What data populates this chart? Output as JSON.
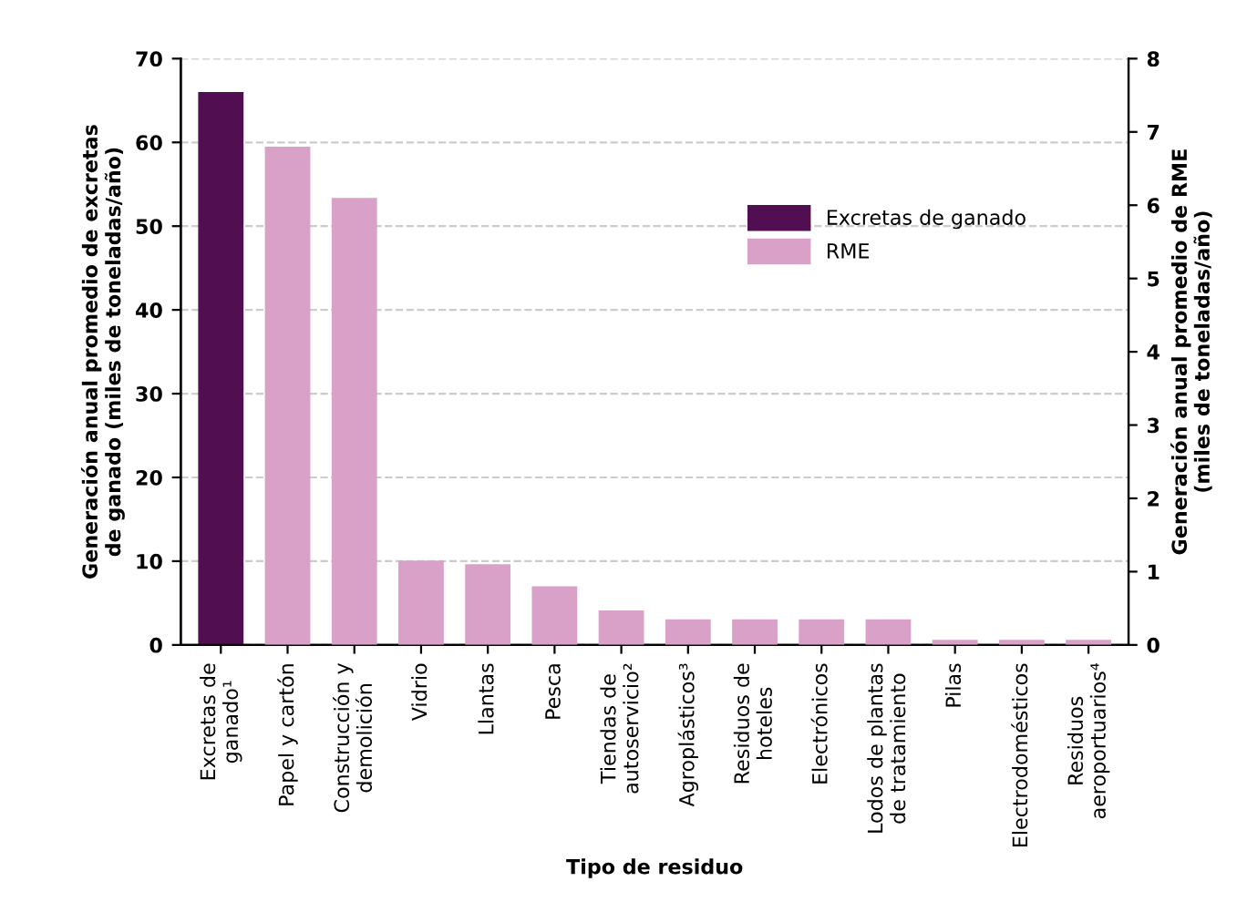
{
  "chart_data": {
    "type": "bar",
    "categories": [
      "Excretas de\nganado¹",
      "Papel y cartón",
      "Construcción y\ndemolición",
      "Vidrio",
      "Llantas",
      "Pesca",
      "Tiendas de\nautoservicio²",
      "Agroplásticos³",
      "Residuos de\nhoteles",
      "Electrónicos",
      "Lodos de plantas\nde tratamiento",
      "Pilas",
      "Electrodomésticos",
      "Residuos\naeroportuarios⁴"
    ],
    "series": [
      {
        "name": "Excretas de ganado",
        "color": "#510f51",
        "values": [
          66,
          null,
          null,
          null,
          null,
          null,
          null,
          null,
          null,
          null,
          null,
          null,
          null,
          null
        ]
      },
      {
        "name": "RME",
        "color": "#d9a0c8",
        "axis": "y2",
        "values": [
          null,
          6.8,
          6.1,
          1.15,
          1.1,
          0.8,
          0.47,
          0.35,
          0.35,
          0.35,
          0.35,
          0.07,
          0.07,
          0.07
        ]
      }
    ],
    "xlabel": "Tipo de residuo",
    "ylabel": "Generación anual promedio de excretas\nde ganado (miles de toneladas/año)",
    "y2label": "Generación anual promedio de RME\n(miles de toneladas/año)",
    "ylim": [
      0,
      70
    ],
    "yticks": [
      0,
      10,
      20,
      30,
      40,
      50,
      60,
      70
    ],
    "y2lim": [
      0,
      8
    ],
    "y2ticks": [
      0,
      1,
      2,
      3,
      4,
      5,
      6,
      7,
      8
    ],
    "grid": "y",
    "legend": "top right"
  }
}
